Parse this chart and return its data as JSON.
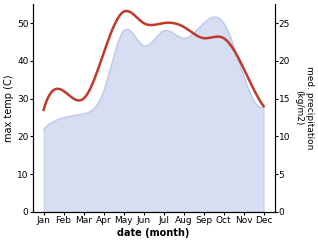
{
  "months": [
    "Jan",
    "Feb",
    "Mar",
    "Apr",
    "May",
    "Jun",
    "Jul",
    "Aug",
    "Sep",
    "Oct",
    "Nov",
    "Dec"
  ],
  "temperature": [
    27,
    32,
    30,
    42,
    53,
    50,
    50,
    49,
    46,
    46,
    38,
    28
  ],
  "precipitation": [
    11,
    12.5,
    13,
    16,
    24,
    22,
    24,
    23,
    25,
    25,
    18,
    14
  ],
  "temp_color": "#c0392b",
  "precip_fill_color": "#b8c4e8",
  "precip_fill_alpha": 0.55,
  "left_ylim": [
    0,
    55
  ],
  "right_ylim": [
    0,
    27.5
  ],
  "left_yticks": [
    0,
    10,
    20,
    30,
    40,
    50
  ],
  "right_yticks": [
    0,
    5,
    10,
    15,
    20,
    25
  ],
  "ylabel_left": "max temp (C)",
  "ylabel_right": "med. precipitation\n(kg/m2)",
  "xlabel": "date (month)",
  "bg_color": "#ffffff",
  "fig_width": 3.18,
  "fig_height": 2.42,
  "dpi": 100
}
